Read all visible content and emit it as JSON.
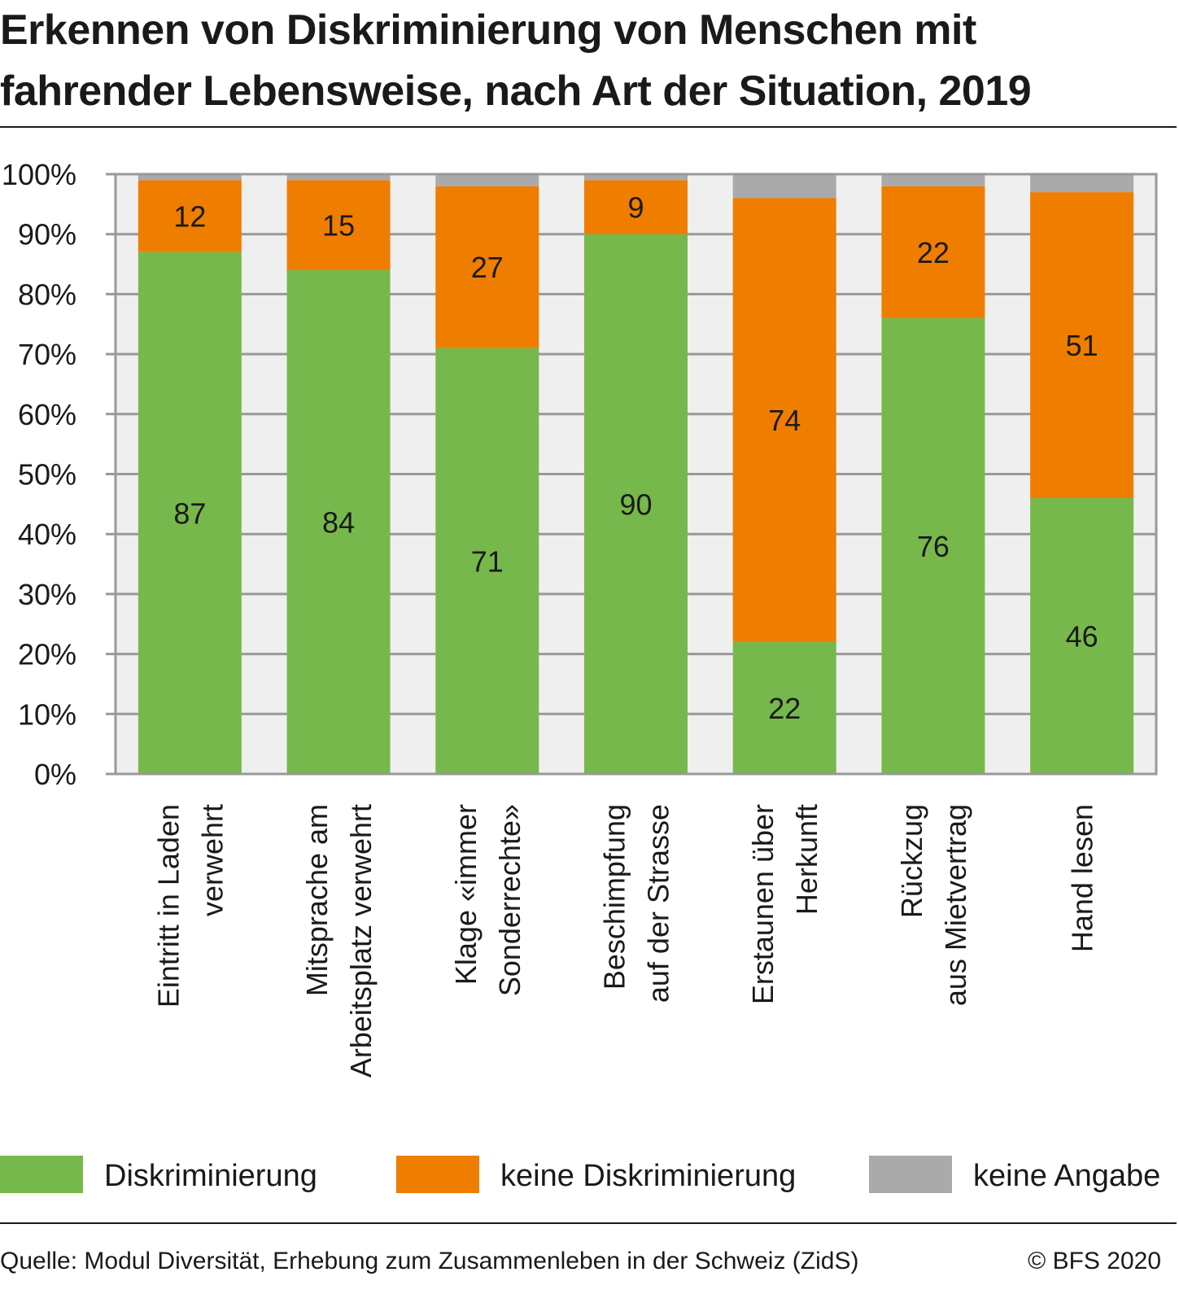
{
  "title_lines": [
    "Erkennen von Diskriminierung von Menschen mit",
    "fahrender Lebensweise, nach Art der Situation, 2019"
  ],
  "chart_data": {
    "type": "bar",
    "stacked": true,
    "categories": [
      [
        "Eintritt in Laden",
        "verwehrt"
      ],
      [
        "Mitsprache am",
        "Arbeitsplatz verwehrt"
      ],
      [
        "Klage «immer",
        "Sonderrechte»"
      ],
      [
        "Beschimpfung",
        "auf der Strasse"
      ],
      [
        "Erstaunen über",
        "Herkunft"
      ],
      [
        "Rückzug",
        "aus Mietvertrag"
      ],
      [
        "Hand lesen"
      ]
    ],
    "series": [
      {
        "name": "Diskriminierung",
        "color": "#77b84c",
        "values": [
          87,
          84,
          71,
          90,
          22,
          76,
          46
        ]
      },
      {
        "name": "keine Diskriminierung",
        "color": "#ef7d00",
        "values": [
          12,
          15,
          27,
          9,
          74,
          22,
          51
        ]
      },
      {
        "name": "keine Angabe",
        "color": "#aaaaaa",
        "values": [
          1,
          1,
          2,
          1,
          4,
          2,
          3
        ]
      }
    ],
    "labeled_series": [
      0,
      1
    ],
    "y_ticks": [
      "0%",
      "10%",
      "20%",
      "30%",
      "40%",
      "50%",
      "60%",
      "70%",
      "80%",
      "90%",
      "100%"
    ],
    "ylim": [
      0,
      100
    ],
    "grid": true,
    "legend_position": "bottom",
    "plot_background": "#efefef",
    "gridline_color": "#999999"
  },
  "source": "Quelle: Modul Diversität, Erhebung zum Zusammenleben in der Schweiz (ZidS)",
  "copyright": "© BFS 2020"
}
